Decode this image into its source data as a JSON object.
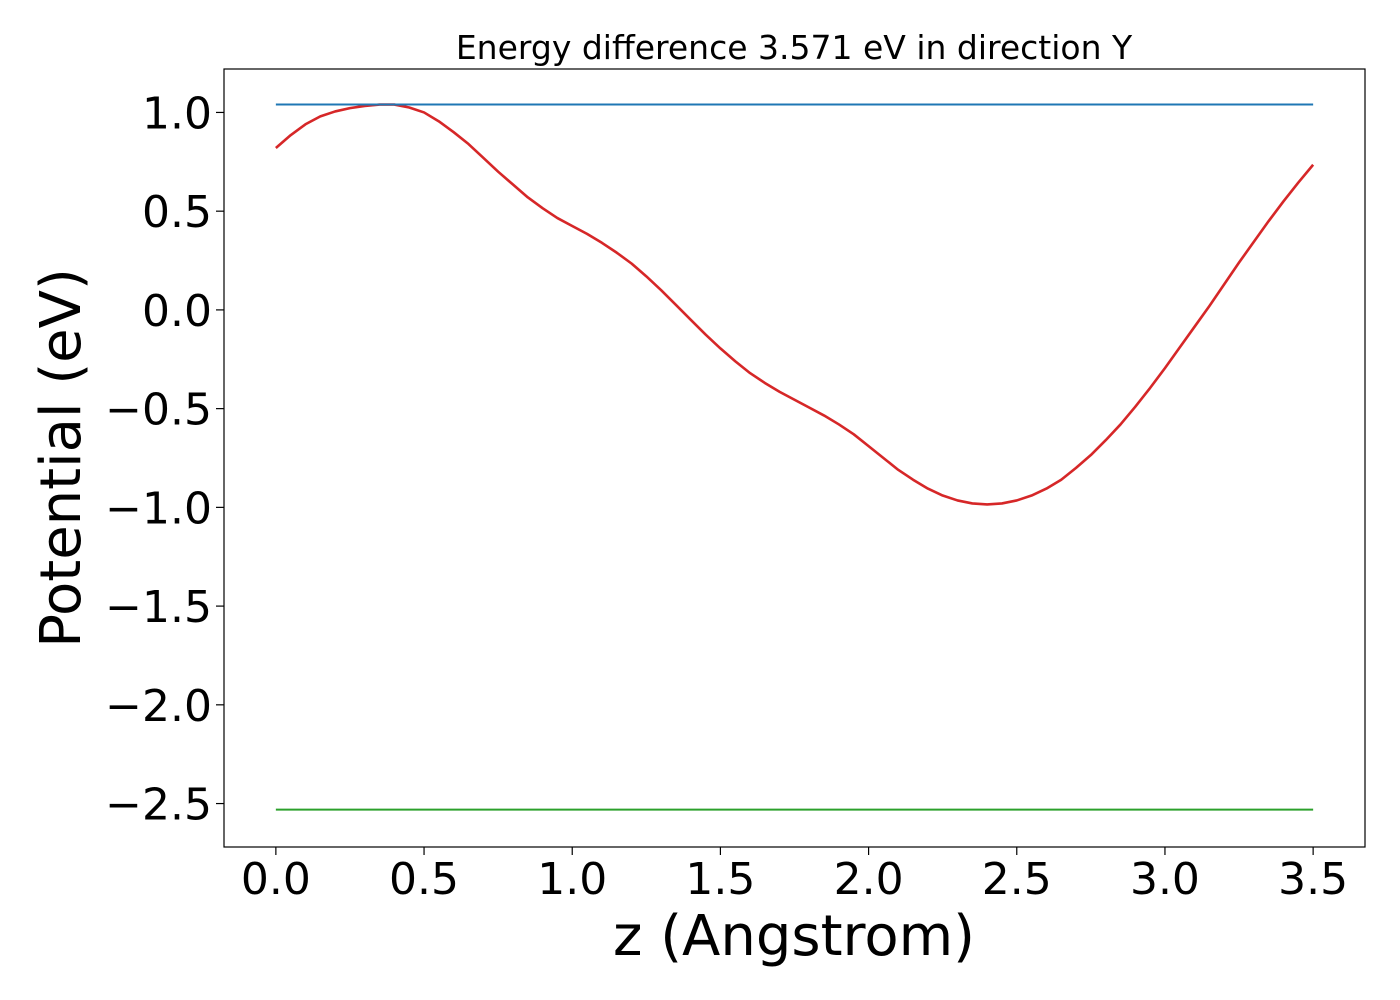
{
  "chart_data": {
    "type": "line",
    "title": "Energy difference 3.571 eV in direction Y",
    "xlabel": "z (Angstrom)",
    "ylabel": "Potential (eV)",
    "xlim": [
      -0.175,
      3.675
    ],
    "ylim": [
      -2.72,
      1.22
    ],
    "x_ticks": [
      0.0,
      0.5,
      1.0,
      1.5,
      2.0,
      2.5,
      3.0,
      3.5
    ],
    "x_tick_labels": [
      "0.0",
      "0.5",
      "1.0",
      "1.5",
      "2.0",
      "2.5",
      "3.0",
      "3.5"
    ],
    "y_ticks": [
      1.0,
      0.5,
      0.0,
      -0.5,
      -1.0,
      -1.5,
      -2.0,
      -2.5
    ],
    "y_tick_labels": [
      "1.0",
      "0.5",
      "0.0",
      "−0.5",
      "−1.0",
      "−1.5",
      "−2.0",
      "−2.5"
    ],
    "grid": false,
    "legend": "none",
    "series": [
      {
        "color": "#d62728",
        "x": [
          0.0,
          0.05,
          0.1,
          0.15,
          0.2,
          0.25,
          0.3,
          0.35,
          0.4,
          0.45,
          0.5,
          0.55,
          0.6,
          0.65,
          0.7,
          0.75,
          0.8,
          0.85,
          0.9,
          0.95,
          1.0,
          1.05,
          1.1,
          1.15,
          1.2,
          1.25,
          1.3,
          1.35,
          1.4,
          1.45,
          1.5,
          1.55,
          1.6,
          1.65,
          1.7,
          1.75,
          1.8,
          1.85,
          1.9,
          1.95,
          2.0,
          2.05,
          2.1,
          2.15,
          2.2,
          2.25,
          2.3,
          2.35,
          2.4,
          2.45,
          2.5,
          2.55,
          2.6,
          2.65,
          2.7,
          2.75,
          2.8,
          2.85,
          2.9,
          2.95,
          3.0,
          3.05,
          3.1,
          3.15,
          3.2,
          3.25,
          3.3,
          3.35,
          3.4,
          3.45,
          3.5
        ],
        "y": [
          0.82,
          0.885,
          0.94,
          0.98,
          1.005,
          1.022,
          1.033,
          1.04,
          1.04,
          1.025,
          1.0,
          0.955,
          0.9,
          0.84,
          0.77,
          0.7,
          0.635,
          0.57,
          0.515,
          0.465,
          0.425,
          0.385,
          0.34,
          0.29,
          0.235,
          0.17,
          0.1,
          0.025,
          -0.05,
          -0.125,
          -0.195,
          -0.26,
          -0.32,
          -0.37,
          -0.415,
          -0.455,
          -0.495,
          -0.535,
          -0.58,
          -0.63,
          -0.69,
          -0.75,
          -0.81,
          -0.86,
          -0.905,
          -0.94,
          -0.965,
          -0.98,
          -0.985,
          -0.98,
          -0.965,
          -0.94,
          -0.905,
          -0.86,
          -0.8,
          -0.735,
          -0.66,
          -0.58,
          -0.49,
          -0.395,
          -0.295,
          -0.19,
          -0.085,
          0.02,
          0.13,
          0.24,
          0.345,
          0.45,
          0.55,
          0.645,
          0.735
        ]
      },
      {
        "color": "#1f77b4",
        "x": [
          0.0,
          3.5
        ],
        "y": [
          1.04,
          1.04
        ]
      },
      {
        "color": "#2ca02c",
        "x": [
          0.0,
          3.5
        ],
        "y": [
          -2.531,
          -2.531
        ]
      }
    ]
  }
}
